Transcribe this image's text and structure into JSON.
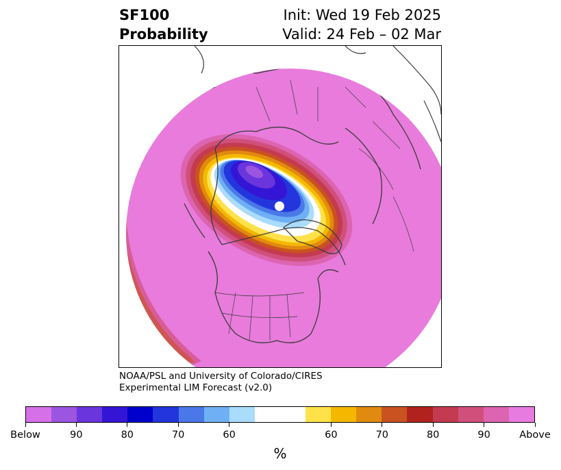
{
  "title": {
    "variable": "SF100",
    "quantity": "Probability",
    "init": "Init: Wed 19 Feb 2025",
    "valid": "Valid: 24 Feb – 02 Mar"
  },
  "credit": {
    "line1": "NOAA/PSL and University of Colorado/CIRES",
    "line2": "Experimental LIM Forecast (v2.0)"
  },
  "colorbar": {
    "unit": "%",
    "below_colors": [
      "#d670e8",
      "#9b55e0",
      "#6a35dd",
      "#3415d6",
      "#0000cc",
      "#2335dc",
      "#4a78e8",
      "#6fb0f4",
      "#aadcfb"
    ],
    "neutral_color": "#ffffff",
    "above_colors": [
      "#ffe24a",
      "#f5b800",
      "#e08a10",
      "#c95220",
      "#b1221f",
      "#c43a50",
      "#d0507b",
      "#dc64b0",
      "#e87be0"
    ],
    "tick_labels": [
      "Below",
      "90",
      "80",
      "70",
      "60",
      "60",
      "70",
      "80",
      "90",
      "Above"
    ]
  },
  "map": {
    "fill_color": "#e87bdc",
    "border_color": "#3a3a3a"
  }
}
